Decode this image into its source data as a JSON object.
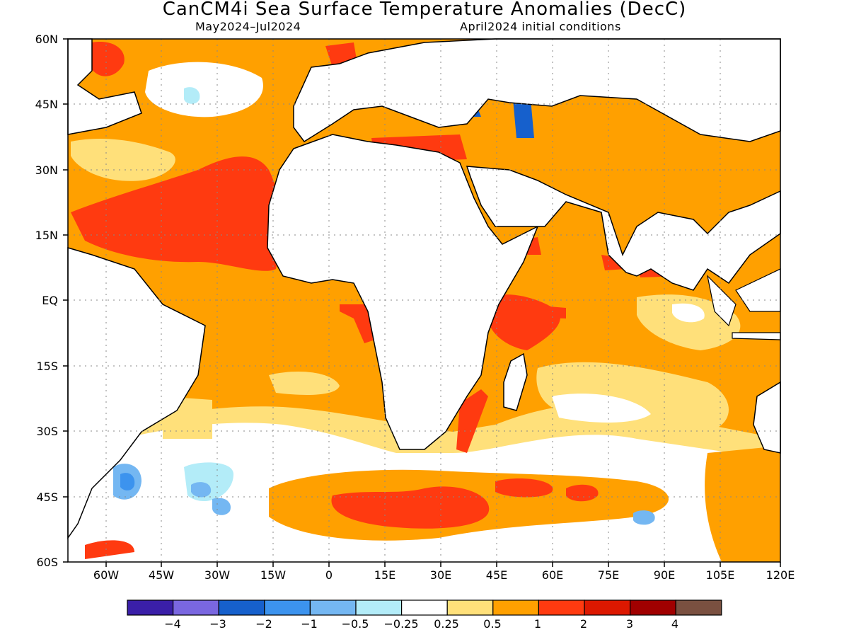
{
  "title": "CanCM4i Sea Surface Temperature Anomalies (DecC)",
  "period": "May2024–Jul2024",
  "init": "April2024 initial conditions",
  "lat_labels": [
    "60N",
    "45N",
    "30N",
    "15N",
    "EQ",
    "15S",
    "30S",
    "45S",
    "60S"
  ],
  "lon_labels": [
    "60W",
    "45W",
    "30W",
    "15W",
    "0",
    "15E",
    "30E",
    "45E",
    "60E",
    "75E",
    "90E",
    "105E",
    "120E"
  ],
  "colorbar": {
    "colors": [
      "#3a1fa8",
      "#7a67e0",
      "#1660cc",
      "#3c93ee",
      "#74b7f2",
      "#b3ecf8",
      "#ffffff",
      "#ffe07a",
      "#ffa000",
      "#ff3a10",
      "#dc1800",
      "#a00000",
      "#7a5040"
    ],
    "labels": [
      "−4",
      "−3",
      "−2",
      "−1",
      "−0.5",
      "−0.25",
      "0.25",
      "0.5",
      "1",
      "2",
      "3",
      "4"
    ]
  }
}
